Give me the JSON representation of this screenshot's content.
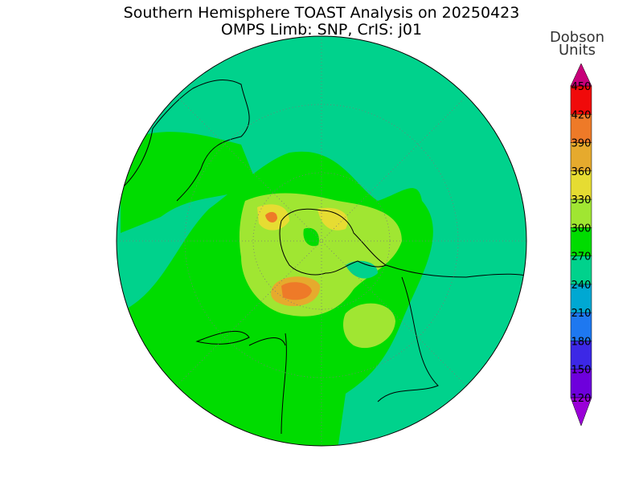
{
  "title": "Southern Hemisphere TOAST Analysis on 20250423",
  "subtitle": "OMPS Limb: SNP, CrIS: j01",
  "colorbar": {
    "label": [
      "Dobson",
      "Units"
    ],
    "ticks": [
      120,
      150,
      180,
      210,
      240,
      270,
      300,
      330,
      360,
      390,
      420,
      450
    ],
    "below_color": "#9a00d8",
    "above_color": "#c8007a",
    "colors": [
      "#6e00dc",
      "#3c28e6",
      "#1e78f0",
      "#00a8d2",
      "#00d28c",
      "#00dc00",
      "#a0e632",
      "#e6dc32",
      "#e6aa2d",
      "#ee7a28",
      "#f00a0a"
    ]
  }
}
